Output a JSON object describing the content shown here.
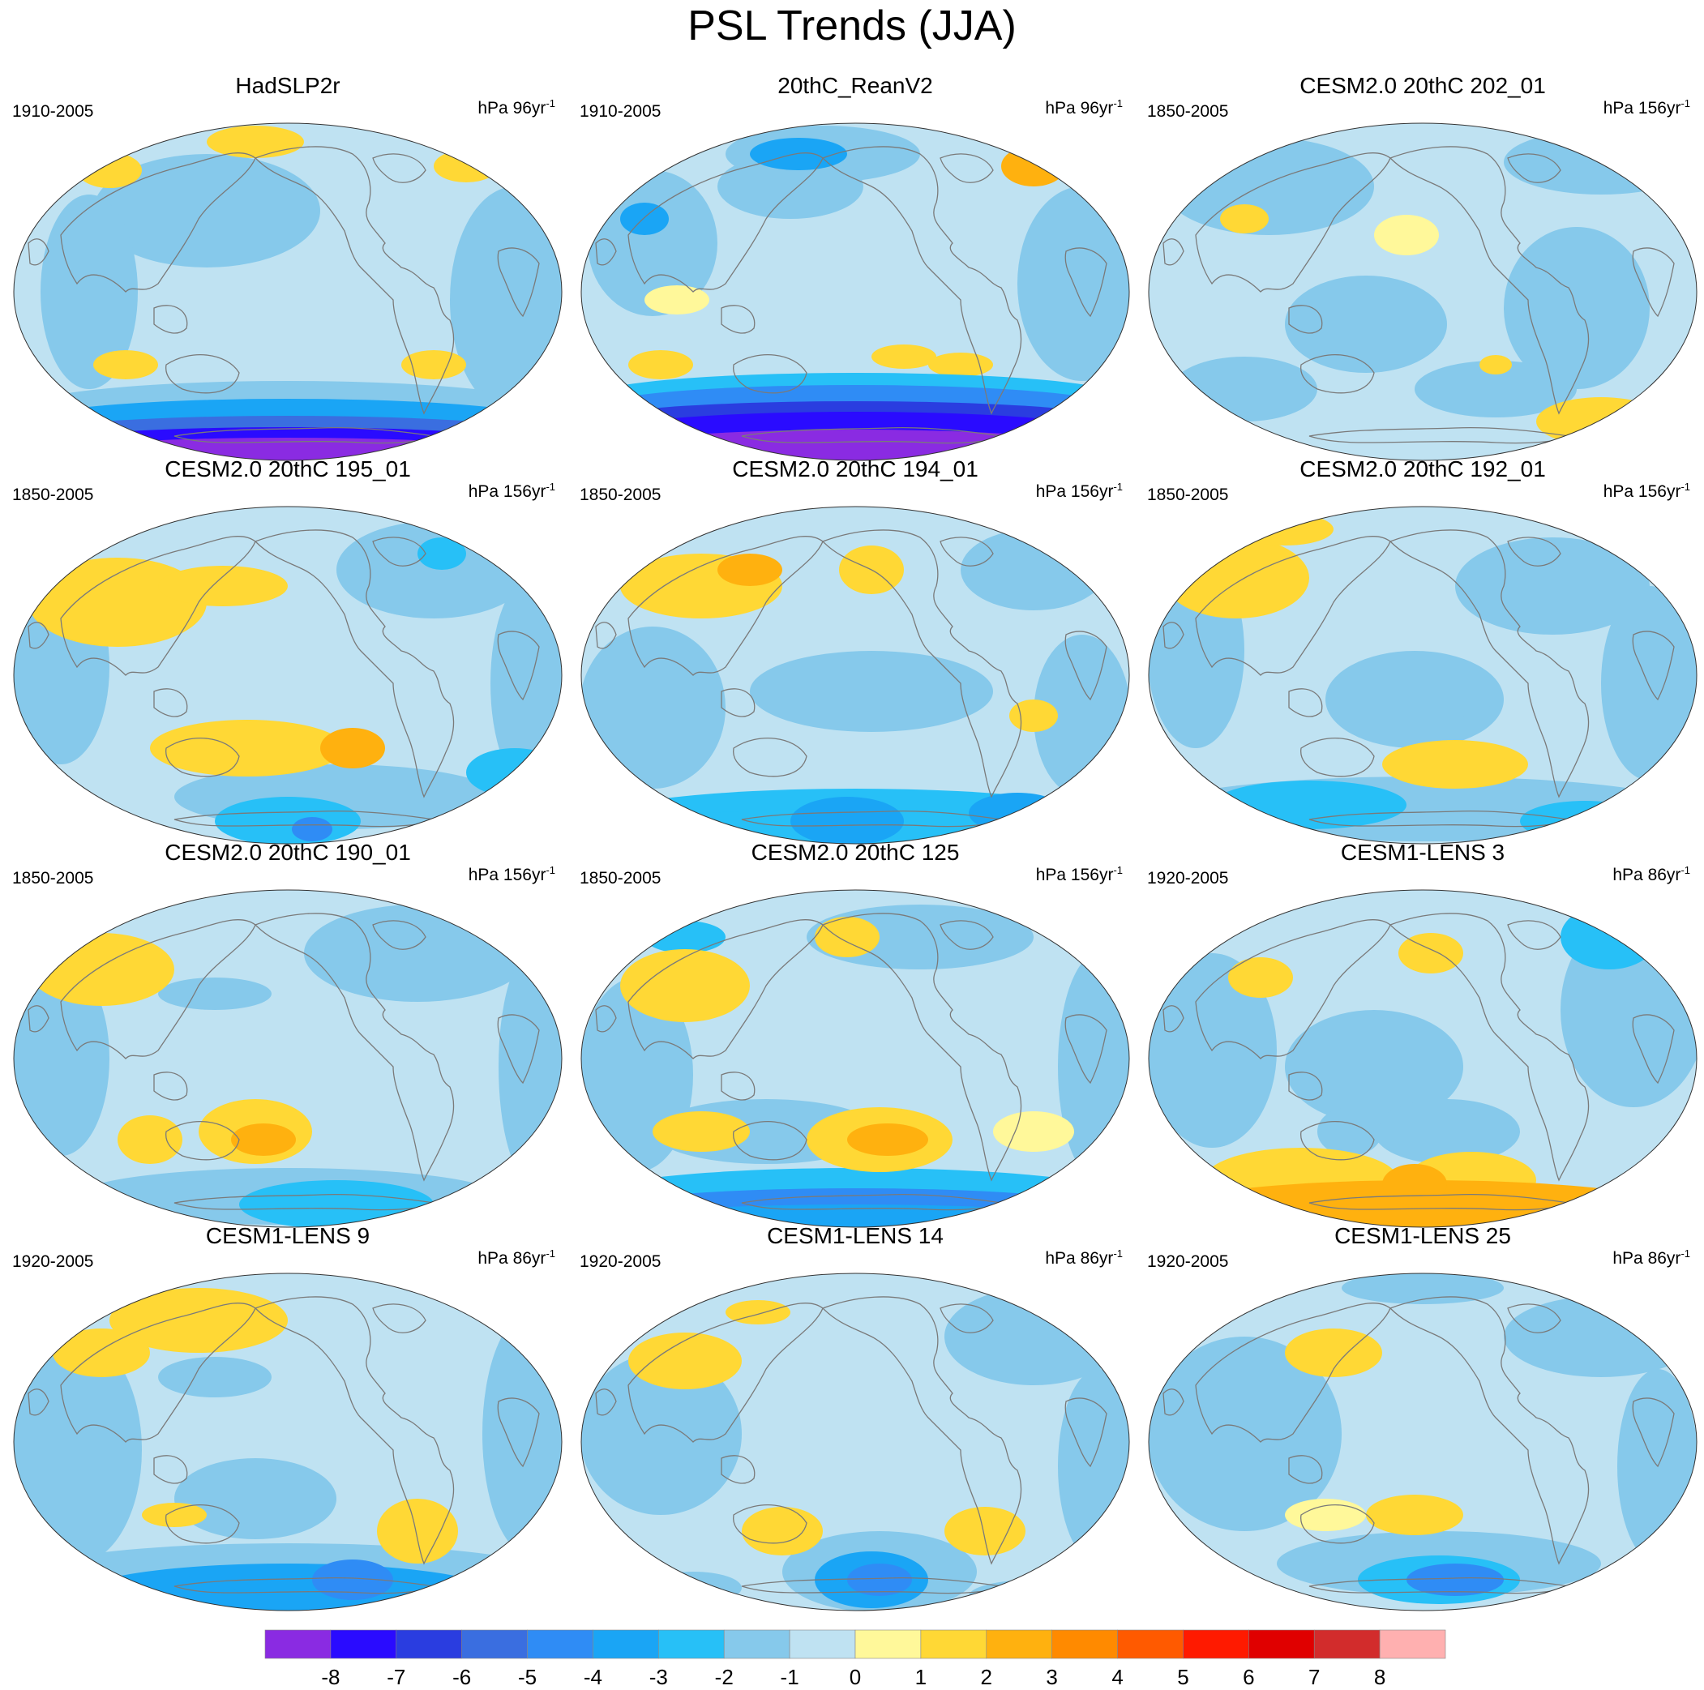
{
  "title": "PSL Trends (JJA)",
  "panels": [
    {
      "title": "HadSLP2r",
      "period": "1910-2005",
      "units": "hPa 96yr",
      "units_exp": "-1",
      "pattern": "had"
    },
    {
      "title": "20thC_ReanV2",
      "period": "1910-2005",
      "units": "hPa 96yr",
      "units_exp": "-1",
      "pattern": "rean"
    },
    {
      "title": "CESM2.0 20thC 202_01",
      "period": "1850-2005",
      "units": "hPa 156yr",
      "units_exp": "-1",
      "pattern": "c202"
    },
    {
      "title": "CESM2.0 20thC 195_01",
      "period": "1850-2005",
      "units": "hPa 156yr",
      "units_exp": "-1",
      "pattern": "c195"
    },
    {
      "title": "CESM2.0 20thC 194_01",
      "period": "1850-2005",
      "units": "hPa 156yr",
      "units_exp": "-1",
      "pattern": "c194"
    },
    {
      "title": "CESM2.0 20thC 192_01",
      "period": "1850-2005",
      "units": "hPa 156yr",
      "units_exp": "-1",
      "pattern": "c192"
    },
    {
      "title": "CESM2.0 20thC 190_01",
      "period": "1850-2005",
      "units": "hPa 156yr",
      "units_exp": "-1",
      "pattern": "c190"
    },
    {
      "title": "CESM2.0 20thC 125",
      "period": "1850-2005",
      "units": "hPa 156yr",
      "units_exp": "-1",
      "pattern": "c125"
    },
    {
      "title": "CESM1-LENS 3",
      "period": "1920-2005",
      "units": "hPa 86yr",
      "units_exp": "-1",
      "pattern": "l3"
    },
    {
      "title": "CESM1-LENS 9",
      "period": "1920-2005",
      "units": "hPa 86yr",
      "units_exp": "-1",
      "pattern": "l9"
    },
    {
      "title": "CESM1-LENS 14",
      "period": "1920-2005",
      "units": "hPa 86yr",
      "units_exp": "-1",
      "pattern": "l14"
    },
    {
      "title": "CESM1-LENS 25",
      "period": "1920-2005",
      "units": "hPa 86yr",
      "units_exp": "-1",
      "pattern": "l25"
    }
  ],
  "colorbar": {
    "labels": [
      "-8",
      "-7",
      "-6",
      "-5",
      "-4",
      "-3",
      "-2",
      "-1",
      "0",
      "1",
      "2",
      "3",
      "4",
      "5",
      "6",
      "7",
      "8"
    ],
    "colors": [
      "#8a2be2",
      "#2a0bff",
      "#2a3de0",
      "#3a6ee0",
      "#2f8cf5",
      "#1aa5f5",
      "#27c0f7",
      "#86c9eb",
      "#bfe2f2",
      "#fff89a",
      "#ffd835",
      "#ffb10f",
      "#ff8a00",
      "#ff5a00",
      "#ff1a00",
      "#e00000",
      "#d22c2c",
      "#ffb0b0"
    ]
  },
  "colors": {
    "ocean_pos": "#fff89a",
    "ocean_neg": "#bfe2f2",
    "coast": "#7a7a7a"
  }
}
